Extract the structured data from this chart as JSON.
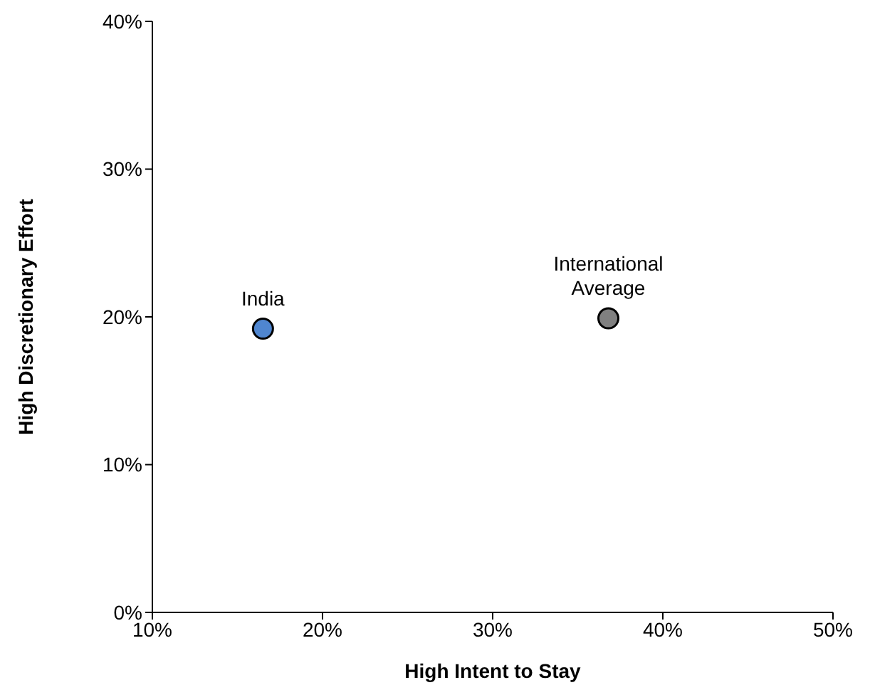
{
  "chart_data": {
    "type": "scatter",
    "xlabel": "High Intent to Stay",
    "ylabel": "High Discretionary Effort",
    "xlim": [
      10,
      50
    ],
    "xticks": [
      {
        "value": 10,
        "label": "10%"
      },
      {
        "value": 20,
        "label": "20%"
      },
      {
        "value": 30,
        "label": "30%"
      },
      {
        "value": 40,
        "label": "40%"
      },
      {
        "value": 50,
        "label": "50%"
      }
    ],
    "ylim": [
      0,
      40
    ],
    "yticks": [
      {
        "value": 0,
        "label": "0%"
      },
      {
        "value": 10,
        "label": "10%"
      },
      {
        "value": 20,
        "label": "20%"
      },
      {
        "value": 30,
        "label": "30%"
      },
      {
        "value": 40,
        "label": "40%"
      }
    ],
    "series": [
      {
        "name": "India",
        "color": "#4f86d0",
        "x": [
          16.5
        ],
        "values": [
          19.2
        ]
      },
      {
        "name": "International Average",
        "color": "#808080",
        "x": [
          36.8
        ],
        "values": [
          19.9
        ]
      }
    ],
    "marker": "circle",
    "grid": false,
    "legend": false
  }
}
